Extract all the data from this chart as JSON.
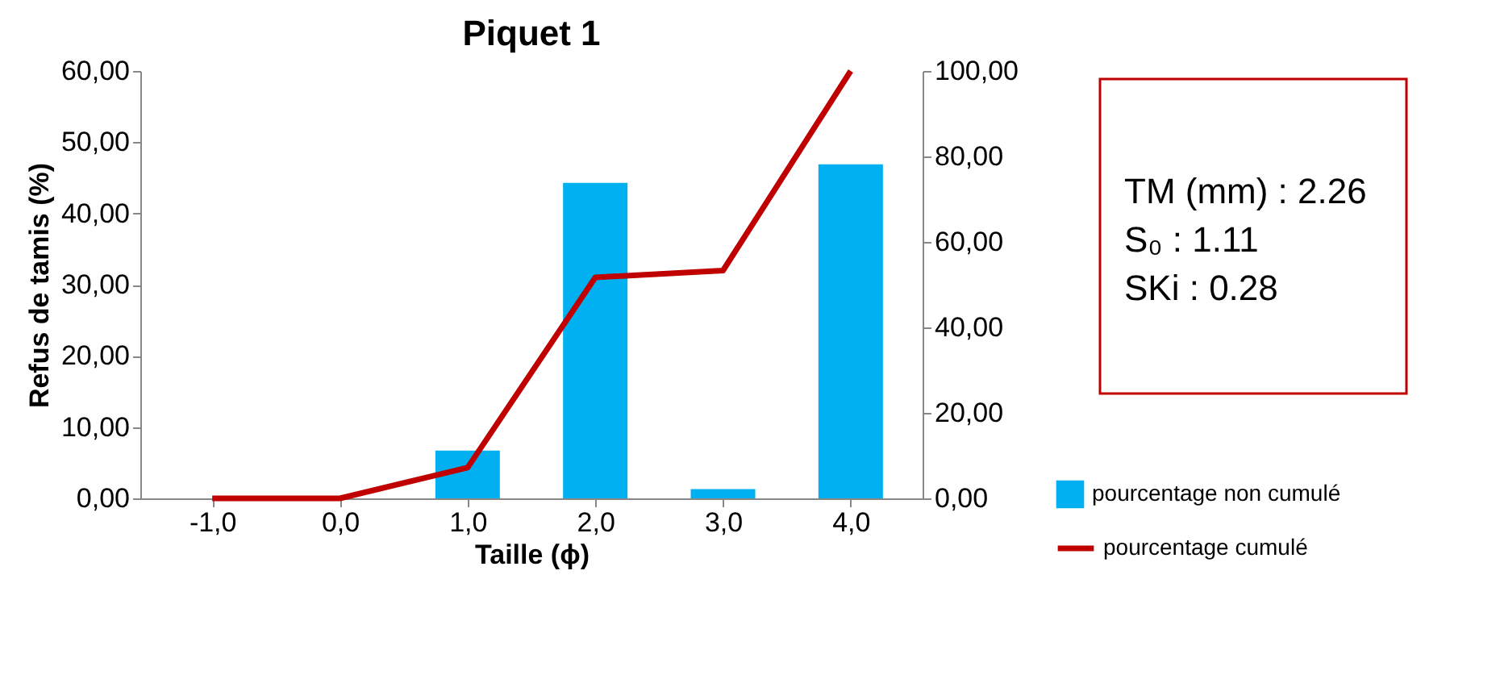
{
  "chart_data": {
    "type": "bar",
    "title": "Piquet 1",
    "xlabel": "Taille (ϕ)",
    "ylabel": "Refus de tamis (%)",
    "categories": [
      "-1,0",
      "0,0",
      "1,0",
      "2,0",
      "3,0",
      "4,0"
    ],
    "series": [
      {
        "name": "pourcentage non cumulé",
        "color": "#00b0f0",
        "values": [
          0,
          0,
          6.7,
          44.3,
          1.3,
          46.9
        ]
      },
      {
        "name": "pourcentage cumulé",
        "type": "line",
        "axis": "y2",
        "color": "#c00000",
        "values": [
          0,
          0,
          7.2,
          51.7,
          53.3,
          100
        ]
      }
    ],
    "ylim": [
      0,
      60
    ],
    "yticks": [
      {
        "value": 0,
        "label": "0,00"
      },
      {
        "value": 10,
        "label": "10,00"
      },
      {
        "value": 20,
        "label": "20,00"
      },
      {
        "value": 30,
        "label": "30,00"
      },
      {
        "value": 40,
        "label": "40,00"
      },
      {
        "value": 50,
        "label": "50,00"
      },
      {
        "value": 60,
        "label": "60,00"
      }
    ],
    "y2lim": [
      0,
      100
    ],
    "y2ticks": [
      {
        "value": 0,
        "label": "0,00"
      },
      {
        "value": 20,
        "label": "20,00"
      },
      {
        "value": 40,
        "label": "40,00"
      },
      {
        "value": 60,
        "label": "60,00"
      },
      {
        "value": 80,
        "label": "80,00"
      },
      {
        "value": 100,
        "label": "100,00"
      }
    ],
    "annotations": [
      "TM (mm) : 2.26",
      "S₀ : 1.11",
      "SKi : 0.28"
    ],
    "legend": "bottom right",
    "grid": false
  }
}
